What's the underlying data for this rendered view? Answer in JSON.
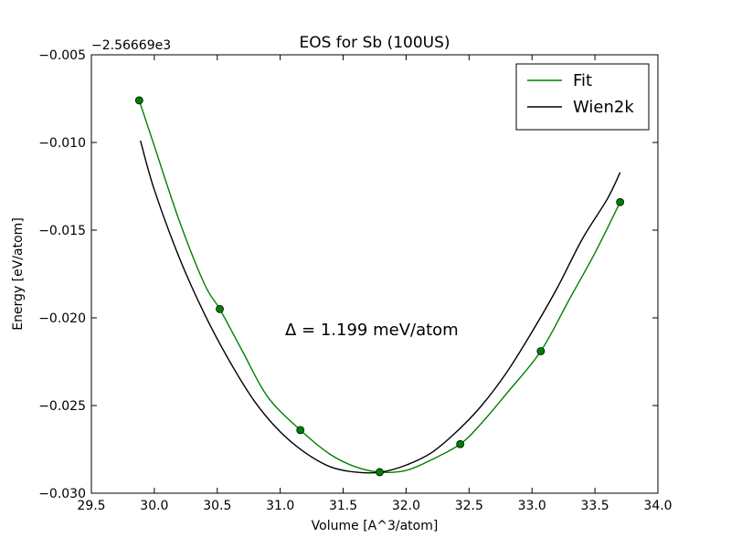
{
  "chart_data": {
    "type": "line",
    "title": "EOS for Sb (100US)",
    "xlabel": "Volume [A^3/atom]",
    "ylabel": "Energy [eV/atom]",
    "y_offset_label": "−2.56669e3",
    "xlim": [
      29.5,
      34.0
    ],
    "ylim": [
      -0.03,
      -0.005
    ],
    "x_ticks": [
      29.5,
      30.0,
      30.5,
      31.0,
      31.5,
      32.0,
      32.5,
      33.0,
      33.5,
      34.0
    ],
    "x_tick_labels": [
      "29.5",
      "30.0",
      "30.5",
      "31.0",
      "31.5",
      "32.0",
      "32.5",
      "33.0",
      "33.5",
      "34.0"
    ],
    "y_ticks": [
      -0.03,
      -0.025,
      -0.02,
      -0.015,
      -0.01,
      -0.005
    ],
    "y_tick_labels": [
      "−0.030",
      "−0.025",
      "−0.020",
      "−0.015",
      "−0.010",
      "−0.005"
    ],
    "grid": false,
    "legend_position": "top-right",
    "annotation": "Δ = 1.199 meV/atom",
    "series": [
      {
        "name": "Fit",
        "kind": "line",
        "color": "#008000",
        "x": [
          29.88,
          30.0,
          30.2,
          30.4,
          30.52,
          30.7,
          30.9,
          31.16,
          31.4,
          31.6,
          31.79,
          32.0,
          32.2,
          32.43,
          32.6,
          32.8,
          33.07,
          33.3,
          33.5,
          33.7
        ],
        "y": [
          -0.0076,
          -0.0102,
          -0.0145,
          -0.0181,
          -0.0195,
          -0.0219,
          -0.0245,
          -0.0264,
          -0.0278,
          -0.0285,
          -0.0288,
          -0.0287,
          -0.0281,
          -0.0272,
          -0.026,
          -0.0243,
          -0.0219,
          -0.0189,
          -0.0163,
          -0.0134
        ]
      },
      {
        "name": "Wien2k",
        "kind": "line",
        "color": "#000000",
        "x": [
          29.89,
          30.0,
          30.2,
          30.4,
          30.6,
          30.8,
          31.0,
          31.2,
          31.4,
          31.6,
          31.8,
          32.0,
          32.2,
          32.4,
          32.6,
          32.8,
          33.0,
          33.2,
          33.4,
          33.6,
          33.7
        ],
        "y": [
          -0.0099,
          -0.0127,
          -0.0166,
          -0.0198,
          -0.0225,
          -0.0248,
          -0.0265,
          -0.0277,
          -0.0285,
          -0.0288,
          -0.0288,
          -0.0284,
          -0.0277,
          -0.0265,
          -0.025,
          -0.0231,
          -0.0208,
          -0.0183,
          -0.0155,
          -0.0132,
          -0.0117
        ]
      },
      {
        "name": "",
        "kind": "points",
        "color": "#008000",
        "x": [
          29.88,
          30.52,
          31.16,
          31.79,
          32.43,
          33.07,
          33.7
        ],
        "y": [
          -0.0076,
          -0.0195,
          -0.0264,
          -0.0288,
          -0.0272,
          -0.0219,
          -0.0134
        ]
      }
    ]
  }
}
